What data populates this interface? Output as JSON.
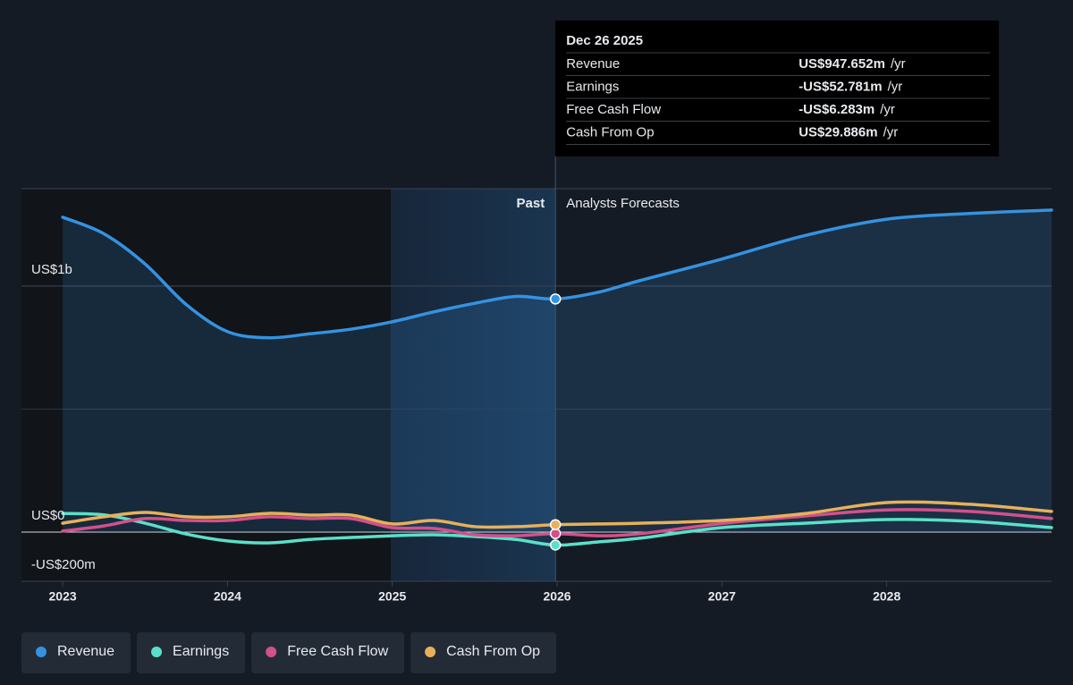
{
  "chart_data": {
    "type": "line",
    "x": [
      2023,
      2023.25,
      2023.5,
      2023.75,
      2024,
      2024.25,
      2024.5,
      2024.75,
      2025,
      2025.25,
      2025.5,
      2025.75,
      2025.99,
      2026.25,
      2026.5,
      2027,
      2027.5,
      2028,
      2028.5,
      2029
    ],
    "series": [
      {
        "name": "Revenue",
        "color": "#3592e0",
        "values": [
          1280,
          1213,
          1090,
          925,
          815,
          790,
          806,
          825,
          855,
          895,
          930,
          958,
          947.652,
          975,
          1022,
          1110,
          1205,
          1272,
          1295,
          1309
        ]
      },
      {
        "name": "Earnings",
        "color": "#5ae0c8",
        "values": [
          76,
          70,
          36,
          -8,
          -36,
          -44,
          -30,
          -22,
          -15,
          -11,
          -18,
          -30,
          -52.781,
          -40,
          -25,
          18,
          36,
          51,
          44,
          18
        ]
      },
      {
        "name": "Free Cash Flow",
        "color": "#d4508a",
        "values": [
          4,
          25,
          55,
          47,
          47,
          62,
          55,
          55,
          18,
          15,
          -11,
          -15,
          -6.283,
          -15,
          -7,
          35,
          65,
          90,
          84,
          55
        ]
      },
      {
        "name": "Cash From Op",
        "color": "#e8b05a",
        "values": [
          36,
          62,
          80,
          62,
          62,
          76,
          69,
          69,
          33,
          47,
          22,
          22,
          29.886,
          33,
          36,
          47,
          75,
          120,
          113,
          84
        ]
      }
    ],
    "xlim": [
      2022.75,
      2029
    ],
    "xticks": [
      2023,
      2024,
      2025,
      2026,
      2027,
      2028
    ],
    "ylim": [
      -200,
      1396
    ],
    "yticks": [
      {
        "value": -200,
        "label": "-US$200m"
      },
      {
        "value": 0,
        "label": "US$0"
      },
      {
        "value": 1000,
        "label": "US$1b"
      }
    ],
    "gridlines": [
      500,
      1000
    ],
    "past_label": "Past",
    "forecast_label": "Analysts Forecasts",
    "tooltip": {
      "date": "Dec 26 2025",
      "x": 2025.99,
      "values": [
        947.652,
        -52.781,
        -6.283,
        29.886
      ],
      "value_labels": [
        "US$947.652m",
        "-US$52.781m",
        "-US$6.283m",
        "US$29.886m"
      ],
      "value_colors": [
        "#3592e0",
        "#e8474f",
        "#e8474f",
        "#e8b05a"
      ],
      "unit": "/yr"
    }
  }
}
